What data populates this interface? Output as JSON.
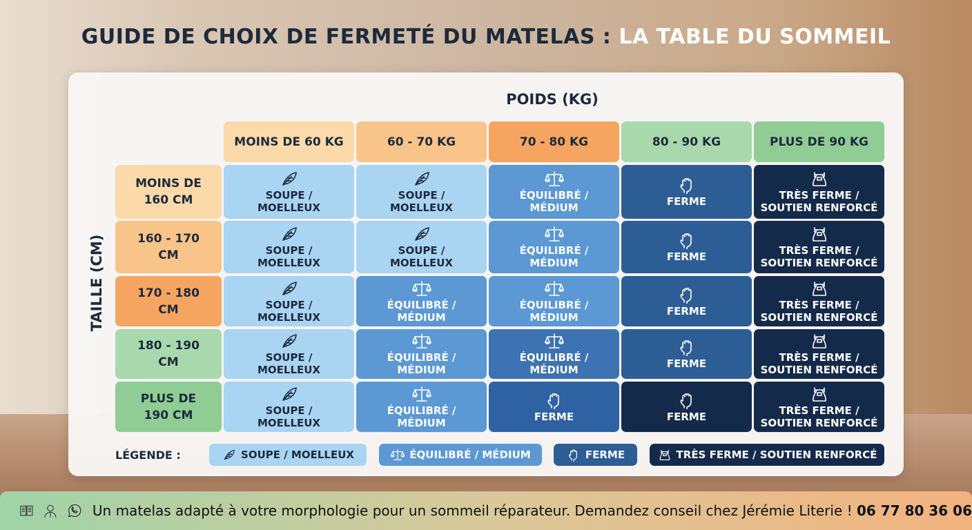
{
  "title": {
    "part1": "GUIDE DE CHOIX DE FERMETÉ DU MATELAS :",
    "part2": "LA TABLE DU SOMMEIL"
  },
  "axes": {
    "x": "POIDS (KG)",
    "y": "TAILLE (CM)"
  },
  "columns": [
    {
      "label": "MOINS DE 60 KG",
      "color": "#fbd9a9"
    },
    {
      "label": "60 - 70 KG",
      "color": "#f9c48a"
    },
    {
      "label": "70 - 80 KG",
      "color": "#f5a560"
    },
    {
      "label": "80 - 90 KG",
      "color": "#a9d8ad"
    },
    {
      "label": "PLUS DE 90 KG",
      "color": "#8fcd95"
    }
  ],
  "rows": [
    {
      "label": "MOINS DE 160 CM",
      "color": "#fbd9a9",
      "cells": [
        "soupe",
        "soupe",
        "equilibre",
        "ferme",
        "tres_ferme"
      ]
    },
    {
      "label": "160 - 170 CM",
      "color": "#f9c48a",
      "cells": [
        "soupe",
        "soupe",
        "equilibre",
        "ferme",
        "tres_ferme"
      ]
    },
    {
      "label": "170 - 180 CM",
      "color": "#f5a560",
      "cells": [
        "soupe",
        "equilibre",
        "equilibre",
        "ferme",
        "tres_ferme"
      ]
    },
    {
      "label": "180 - 190 CM",
      "color": "#a9d8ad",
      "cells": [
        "soupe",
        "equilibre",
        "equilibre",
        "ferme",
        "tres_ferme"
      ]
    },
    {
      "label": "PLUS DE 190 CM",
      "color": "#8fcd95",
      "cells": [
        "soupe",
        "equilibre",
        "ferme",
        "ferme",
        "tres_ferme"
      ]
    }
  ],
  "levels": {
    "soupe": {
      "line1": "SOUPE /",
      "line2": "MOELLEUX",
      "icon": "feather-icon",
      "color": "#a9d4f2"
    },
    "equilibre": {
      "line1": "ÉQUILIBRÉ /",
      "line2": "MÉDIUM",
      "icon": "scale-icon",
      "color": "#5b98d4"
    },
    "ferme": {
      "line1": "FERME",
      "line2": "",
      "icon": "fist-icon",
      "color": "#2d5d95"
    },
    "tres_ferme": {
      "line1": "TRÈS FERME /",
      "line2": "SOUTIEN RENFORCÉ",
      "icon": "kettlebell-icon",
      "color": "#142a4a"
    }
  },
  "legend": {
    "label": "LÉGENDE :",
    "items": [
      "SOUPE / MOELLEUX",
      "ÉQUILIBRÉ / MÉDIUM",
      "FERME",
      "TRÈS FERME / SOUTIEN RENFORCÉ"
    ]
  },
  "footer": {
    "text": "Un matelas adapté à votre morphologie pour un sommeil réparateur. Demandez conseil chez Jérémie Literie !",
    "phone": "06 77 80 36 06"
  }
}
